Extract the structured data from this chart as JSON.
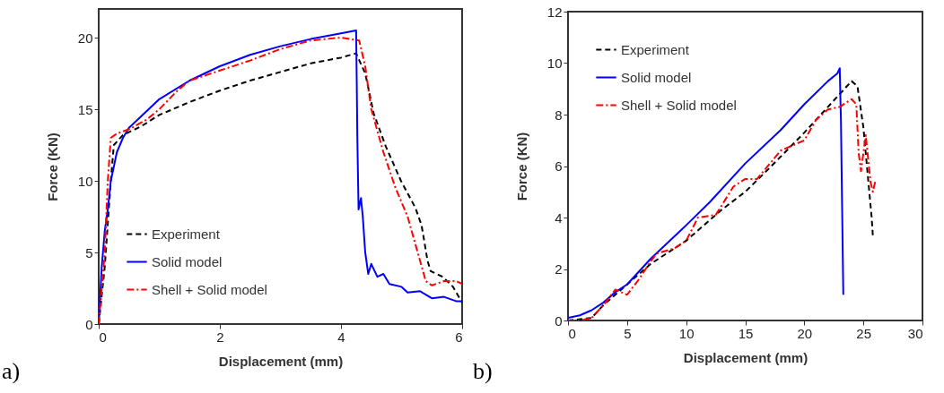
{
  "chart_data": [
    {
      "type": "line",
      "xlabel": "Displacement (mm)",
      "ylabel": "Force (KN)",
      "xlim": [
        0,
        6
      ],
      "xticks": [
        0,
        2,
        4,
        6
      ],
      "ylim": [
        0,
        22
      ],
      "yticks": [
        0,
        5,
        10,
        15,
        20
      ],
      "grid": false,
      "legend": "bottom left",
      "marker": "none",
      "annotations": [
        "a)"
      ],
      "series": [
        {
          "name": "Experiment",
          "color": "#000000",
          "line_style": "dashed",
          "x": [
            0,
            0.1,
            0.2,
            0.25,
            0.4,
            0.7,
            1,
            1.5,
            2,
            2.5,
            3,
            3.5,
            4,
            4.25,
            4.4,
            4.54,
            4.74,
            4.99,
            5.23,
            5.33,
            5.43,
            5.48,
            5.68,
            5.85,
            6
          ],
          "values": [
            0,
            4,
            10,
            12.5,
            13.2,
            13.8,
            14.6,
            15.5,
            16.3,
            17,
            17.6,
            18.2,
            18.6,
            18.9,
            17.5,
            14.7,
            12.4,
            10,
            8.1,
            6.9,
            4.4,
            3.7,
            3.3,
            2.6,
            1.5
          ]
        },
        {
          "name": "Solid model",
          "color": "#0000ff",
          "line_style": "solid",
          "x": [
            0,
            0.05,
            0.1,
            0.15,
            0.2,
            0.25,
            0.3,
            0.4,
            0.5,
            0.7,
            1,
            1.5,
            2,
            2.5,
            3,
            3.5,
            4,
            4.25,
            4.26,
            4.27,
            4.29,
            4.33,
            4.36,
            4.4,
            4.45,
            4.5,
            4.6,
            4.7,
            4.8,
            5,
            5.1,
            5.3,
            5.5,
            5.7,
            5.9,
            6
          ],
          "values": [
            0,
            4,
            6.5,
            8,
            10,
            11,
            12,
            13,
            13.7,
            14.5,
            15.7,
            17,
            18,
            18.8,
            19.4,
            19.9,
            20.3,
            20.5,
            17,
            13,
            8,
            8.8,
            7.5,
            5,
            3.5,
            4.2,
            3.3,
            3.5,
            2.8,
            2.6,
            2.2,
            2.3,
            1.8,
            1.9,
            1.6,
            1.6
          ]
        },
        {
          "name": "Shell + Solid model",
          "color": "#ff0000",
          "line_style": "dashdot",
          "x": [
            0,
            0.1,
            0.15,
            0.2,
            0.3,
            0.5,
            0.8,
            1,
            1.3,
            1.5,
            2,
            2.5,
            3,
            3.5,
            4,
            4.3,
            4.4,
            4.5,
            4.7,
            4.9,
            5.1,
            5.3,
            5.4,
            5.5,
            5.7,
            5.9,
            6
          ],
          "values": [
            0,
            5,
            10,
            13,
            13.3,
            13.6,
            14.3,
            15,
            16.3,
            17,
            17.7,
            18.4,
            19.2,
            19.8,
            20,
            19.8,
            18,
            15,
            12,
            9.5,
            7.5,
            4.5,
            3,
            2.7,
            3,
            3,
            2.8
          ]
        }
      ]
    },
    {
      "type": "line",
      "xlabel": "Displacement (mm)",
      "ylabel": "Force (KN)",
      "xlim": [
        0,
        30
      ],
      "xticks": [
        0,
        5,
        10,
        15,
        20,
        25,
        30
      ],
      "ylim": [
        0,
        12
      ],
      "yticks": [
        0,
        2,
        4,
        6,
        8,
        10,
        12
      ],
      "grid": false,
      "legend": "top left",
      "marker": "none",
      "annotations": [
        "b)"
      ],
      "series": [
        {
          "name": "Experiment",
          "color": "#000000",
          "line_style": "dashed",
          "x": [
            0,
            2,
            3,
            4,
            5,
            7,
            10,
            13,
            15,
            17,
            20,
            22,
            23,
            24,
            24.5,
            25,
            25.4,
            25.7,
            25.8
          ],
          "values": [
            0,
            0.1,
            0.6,
            1,
            1.4,
            2.2,
            3.1,
            4.3,
            5,
            5.9,
            7.3,
            8.3,
            8.8,
            9.3,
            9.1,
            7.5,
            5.5,
            4,
            3.3
          ]
        },
        {
          "name": "Solid model",
          "color": "#0000ff",
          "line_style": "solid",
          "x": [
            0,
            1,
            2,
            3,
            4,
            5,
            7,
            10,
            12,
            15,
            18,
            20,
            22,
            22.8,
            23,
            23.05,
            23.1,
            23.3
          ],
          "values": [
            0.1,
            0.2,
            0.4,
            0.7,
            1.1,
            1.4,
            2.4,
            3.7,
            4.6,
            6.1,
            7.4,
            8.4,
            9.3,
            9.6,
            9.8,
            8.7,
            7.8,
            1
          ]
        },
        {
          "name": "Shell + Solid model",
          "color": "#ff0000",
          "line_style": "dashdot",
          "x": [
            0,
            1,
            2,
            3,
            4,
            5,
            6,
            7,
            7.5,
            9,
            10,
            11,
            12.5,
            14,
            15,
            16,
            18,
            20,
            21,
            22,
            23,
            24,
            24.4,
            24.6,
            24.8,
            25.2,
            25.6,
            25.8,
            26
          ],
          "values": [
            0,
            0,
            0.1,
            0.6,
            1.2,
            1,
            1.6,
            2.3,
            2.6,
            2.8,
            3.1,
            4,
            4.1,
            5.2,
            5.5,
            5.5,
            6.6,
            7,
            7.8,
            8.2,
            8.3,
            8.6,
            8.4,
            6.5,
            5.8,
            7.2,
            5.4,
            5,
            5.4
          ]
        }
      ]
    }
  ]
}
